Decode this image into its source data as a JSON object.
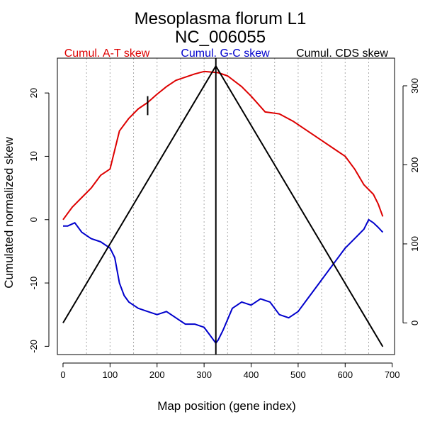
{
  "chart_data": {
    "type": "line",
    "title": "Mesoplasma florum L1",
    "subtitle": "NC_006055",
    "xlabel": "Map position (gene index)",
    "ylabel": "Cumulated normalized skew",
    "xlim": [
      -12,
      705
    ],
    "ylim": [
      -21.3,
      25.5
    ],
    "y2lim": [
      -40,
      335
    ],
    "x_ticks": [
      0,
      100,
      200,
      300,
      400,
      500,
      600,
      700
    ],
    "y_ticks": [
      -20,
      -10,
      0,
      10,
      20
    ],
    "y2_ticks": [
      0,
      100,
      200,
      300
    ],
    "grid_x": [
      50,
      100,
      150,
      200,
      250,
      300,
      350,
      400,
      450,
      500,
      550,
      600,
      650
    ],
    "origin_marker": {
      "x": 180,
      "y_from": 16.5,
      "y_to": 19.5,
      "color": "#000000"
    },
    "terminus_marker": {
      "x": 325,
      "color": "#000000"
    },
    "series": [
      {
        "name": "Cumul. A-T skew",
        "color": "#dd0000",
        "axis": "left",
        "x": [
          0,
          10,
          20,
          40,
          60,
          80,
          100,
          110,
          120,
          140,
          160,
          180,
          200,
          220,
          240,
          260,
          280,
          300,
          315,
          330,
          350,
          380,
          400,
          430,
          460,
          490,
          520,
          550,
          580,
          600,
          620,
          640,
          660,
          670,
          680
        ],
        "y": [
          0,
          1,
          2,
          3.5,
          5,
          7,
          8,
          11,
          14,
          16,
          17.5,
          18.5,
          19.8,
          21,
          22,
          22.5,
          23,
          23.4,
          23.3,
          23.2,
          22.7,
          21,
          19.5,
          17,
          16.7,
          15.5,
          14,
          12.5,
          11,
          10,
          8,
          5.5,
          4,
          2.5,
          0.5
        ]
      },
      {
        "name": "Cumul. G-C skew",
        "color": "#0000cc",
        "axis": "left",
        "x": [
          0,
          10,
          25,
          40,
          60,
          80,
          100,
          110,
          120,
          130,
          140,
          160,
          180,
          200,
          220,
          240,
          260,
          280,
          300,
          310,
          325,
          330,
          340,
          360,
          380,
          400,
          420,
          440,
          460,
          480,
          500,
          520,
          540,
          560,
          580,
          600,
          620,
          640,
          650,
          660,
          670,
          680
        ],
        "y": [
          -1,
          -1,
          -0.5,
          -2,
          -3,
          -3.5,
          -4.5,
          -6,
          -10,
          -12,
          -13,
          -14,
          -14.5,
          -15,
          -14.5,
          -15.5,
          -16.5,
          -16.5,
          -17,
          -18,
          -19.5,
          -19,
          -17.5,
          -14,
          -13,
          -13.5,
          -12.5,
          -13,
          -15,
          -15.5,
          -14.5,
          -12.5,
          -10.5,
          -8.5,
          -6.5,
          -4.5,
          -3,
          -1.5,
          0,
          -0.5,
          -1.2,
          -2
        ]
      },
      {
        "name": "Cumul. CDS skew",
        "color": "#000000",
        "axis": "right",
        "x": [
          0,
          325,
          680
        ],
        "y": [
          0,
          325,
          -30
        ]
      }
    ]
  }
}
